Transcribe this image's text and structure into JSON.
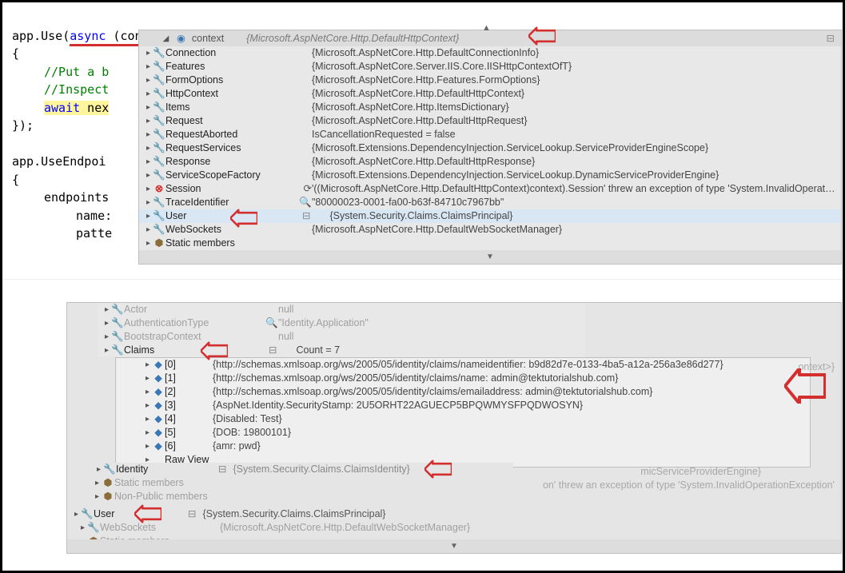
{
  "code": {
    "line1_pre": "app.Use(",
    "line1_async": "async",
    "line1_post": " (context, next) =>",
    "brace_open": "{",
    "comment1": "//Put a b",
    "comment2": "//Inspect",
    "await_pre": "await",
    "await_post": " nex",
    "close": "});",
    "line2": "app.UseEndpoi",
    "brace2": "{",
    "line3": "endpoints",
    "line4": "name:",
    "line5": "patte"
  },
  "topHeader": {
    "var": "context",
    "type": "{Microsoft.AspNetCore.Http.DefaultHttpContext}"
  },
  "topRows": [
    {
      "icon": "wrench",
      "name": "Connection",
      "val": "{Microsoft.AspNetCore.Http.DefaultConnectionInfo}"
    },
    {
      "icon": "wrench",
      "name": "Features",
      "val": "{Microsoft.AspNetCore.Server.IIS.Core.IISHttpContextOfT<Microsoft.AspNetCore.Hosting.HostingApplication.Context>}"
    },
    {
      "icon": "wrench",
      "name": "FormOptions",
      "val": "{Microsoft.AspNetCore.Http.Features.FormOptions}"
    },
    {
      "icon": "wrench",
      "name": "HttpContext",
      "val": "{Microsoft.AspNetCore.Http.DefaultHttpContext}"
    },
    {
      "icon": "wrench",
      "name": "Items",
      "val": "{Microsoft.AspNetCore.Http.ItemsDictionary}"
    },
    {
      "icon": "wrench",
      "name": "Request",
      "val": "{Microsoft.AspNetCore.Http.DefaultHttpRequest}"
    },
    {
      "icon": "wrench",
      "name": "RequestAborted",
      "val": "IsCancellationRequested = false"
    },
    {
      "icon": "wrench",
      "name": "RequestServices",
      "val": "{Microsoft.Extensions.DependencyInjection.ServiceLookup.ServiceProviderEngineScope}"
    },
    {
      "icon": "wrench",
      "name": "Response",
      "val": "{Microsoft.AspNetCore.Http.DefaultHttpResponse}"
    },
    {
      "icon": "wrench",
      "name": "ServiceScopeFactory",
      "val": "{Microsoft.Extensions.DependencyInjection.ServiceLookup.DynamicServiceProviderEngine}"
    },
    {
      "icon": "error",
      "name": "Session",
      "val": "'((Microsoft.AspNetCore.Http.DefaultHttpContext)context).Session' threw an exception of type 'System.InvalidOperationException'",
      "pre": "refresh"
    },
    {
      "icon": "wrench",
      "name": "TraceIdentifier",
      "val": "\"80000023-0001-fa00-b63f-84710c7967bb\"",
      "pre": "search"
    },
    {
      "icon": "wrench",
      "name": "User",
      "val": "{System.Security.Claims.ClaimsPrincipal}",
      "sel": true,
      "arrow": true
    },
    {
      "icon": "wrench",
      "name": "WebSockets",
      "val": "{Microsoft.AspNetCore.Http.DefaultWebSocketManager}"
    },
    {
      "icon": "hex",
      "name": "Static members",
      "val": ""
    }
  ],
  "midTopRows": [
    {
      "icon": "wrench",
      "name": "Actor",
      "val": "null",
      "dim": true
    },
    {
      "icon": "wrench",
      "name": "AuthenticationType",
      "val": "\"Identity.Application\"",
      "dim": true,
      "pre": "search"
    },
    {
      "icon": "wrench",
      "name": "BootstrapContext",
      "val": "null",
      "dim": true
    },
    {
      "icon": "wrench",
      "name": "Claims",
      "val": "Count = 7",
      "arrow": true
    }
  ],
  "claims": [
    {
      "idx": "[0]",
      "val": "{http://schemas.xmlsoap.org/ws/2005/05/identity/claims/nameidentifier: b9d82d7e-0133-4ba5-a12a-256a3e86d277}"
    },
    {
      "idx": "[1]",
      "val": "{http://schemas.xmlsoap.org/ws/2005/05/identity/claims/name: admin@tektutorialshub.com}"
    },
    {
      "idx": "[2]",
      "val": "{http://schemas.xmlsoap.org/ws/2005/05/identity/claims/emailaddress: admin@tektutorialshub.com}"
    },
    {
      "idx": "[3]",
      "val": "{AspNet.Identity.SecurityStamp: 2U5ORHT22AGUECP5BPQWMYSFPQDWOSYN}"
    },
    {
      "idx": "[4]",
      "val": "{Disabled: Test}"
    },
    {
      "idx": "[5]",
      "val": "{DOB: 19800101}"
    },
    {
      "idx": "[6]",
      "val": "{amr: pwd}"
    }
  ],
  "rawView": "Raw View",
  "identityRow": {
    "name": "Identity",
    "val": "{System.Security.Claims.ClaimsIdentity}"
  },
  "midBottomRows": [
    {
      "icon": "hex",
      "name": "Static members",
      "val": "",
      "dim": true
    },
    {
      "icon": "hex",
      "name": "Non-Public members",
      "val": "",
      "dim": true
    }
  ],
  "ghostRight1": "micServiceProviderEngine}",
  "ghostRight2": "on' threw an exception of type 'System.InvalidOperationException'",
  "ghostRightCtx": "ontext>}",
  "userRow": {
    "name": "User",
    "val": "{System.Security.Claims.ClaimsPrincipal}"
  },
  "bottomRows": [
    {
      "icon": "wrench",
      "name": "WebSockets",
      "val": "{Microsoft.AspNetCore.Http.DefaultWebSocketManager}",
      "dim": true
    },
    {
      "icon": "hex",
      "name": "Static members",
      "val": "",
      "dim": true
    }
  ],
  "colors": {
    "red": "#d32f2f",
    "panel": "#e8e8e8"
  }
}
